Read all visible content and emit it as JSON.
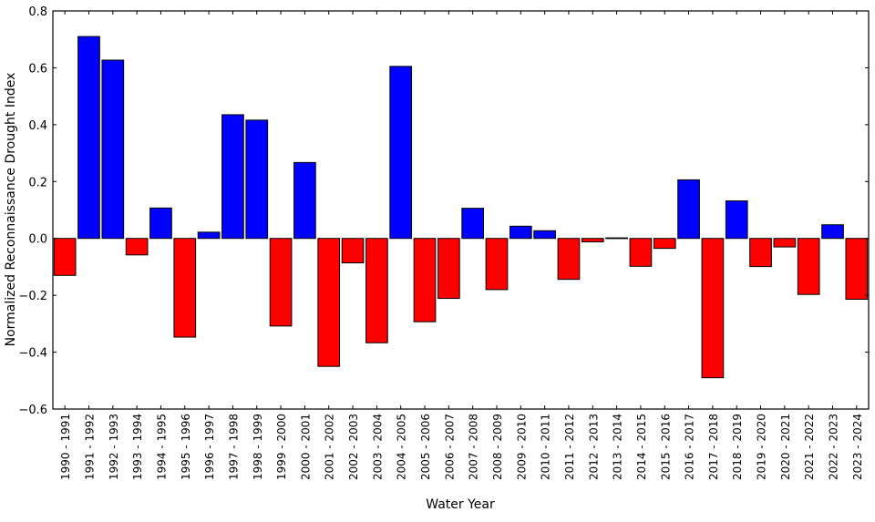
{
  "chart_data": {
    "type": "bar",
    "title": "",
    "xlabel": "Water Year",
    "ylabel": "Normalized Reconnaissance Drought Index",
    "ylim": [
      -0.6,
      0.8
    ],
    "yticks": [
      "0.8",
      "0.6",
      "0.4",
      "0.2",
      "0.0",
      "−0.2",
      "−0.4",
      "−0.6"
    ],
    "ytick_values": [
      0.8,
      0.6,
      0.4,
      0.2,
      0.0,
      -0.2,
      -0.4,
      -0.6
    ],
    "grid": false,
    "colors": {
      "positive": "#0000ff",
      "negative": "#ff0000",
      "edge": "#000000"
    },
    "categories": [
      "1990 - 1991",
      "1991 - 1992",
      "1992 - 1993",
      "1993 - 1994",
      "1994 - 1995",
      "1995 - 1996",
      "1996 - 1997",
      "1997 - 1998",
      "1998 - 1999",
      "1999 - 2000",
      "2000 - 2001",
      "2001 - 2002",
      "2002 - 2003",
      "2003 - 2004",
      "2004 - 2005",
      "2005 - 2006",
      "2006 - 2007",
      "2007 - 2008",
      "2008 - 2009",
      "2009 - 2010",
      "2010 - 2011",
      "2011 - 2012",
      "2012 - 2013",
      "2013 - 2014",
      "2014 - 2015",
      "2015 - 2016",
      "2016 - 2017",
      "2017 - 2018",
      "2018 - 2019",
      "2019 - 2020",
      "2020 - 2021",
      "2021 - 2022",
      "2022 - 2023",
      "2023 - 2024"
    ],
    "values": [
      -0.13,
      0.71,
      0.627,
      -0.058,
      0.107,
      -0.347,
      0.022,
      0.435,
      0.416,
      -0.308,
      0.267,
      -0.45,
      -0.086,
      -0.367,
      0.605,
      -0.293,
      -0.211,
      0.106,
      -0.18,
      0.043,
      0.027,
      -0.144,
      -0.012,
      0.002,
      -0.098,
      -0.035,
      0.206,
      -0.49,
      0.132,
      -0.099,
      -0.03,
      -0.197,
      0.048,
      -0.214
    ]
  }
}
